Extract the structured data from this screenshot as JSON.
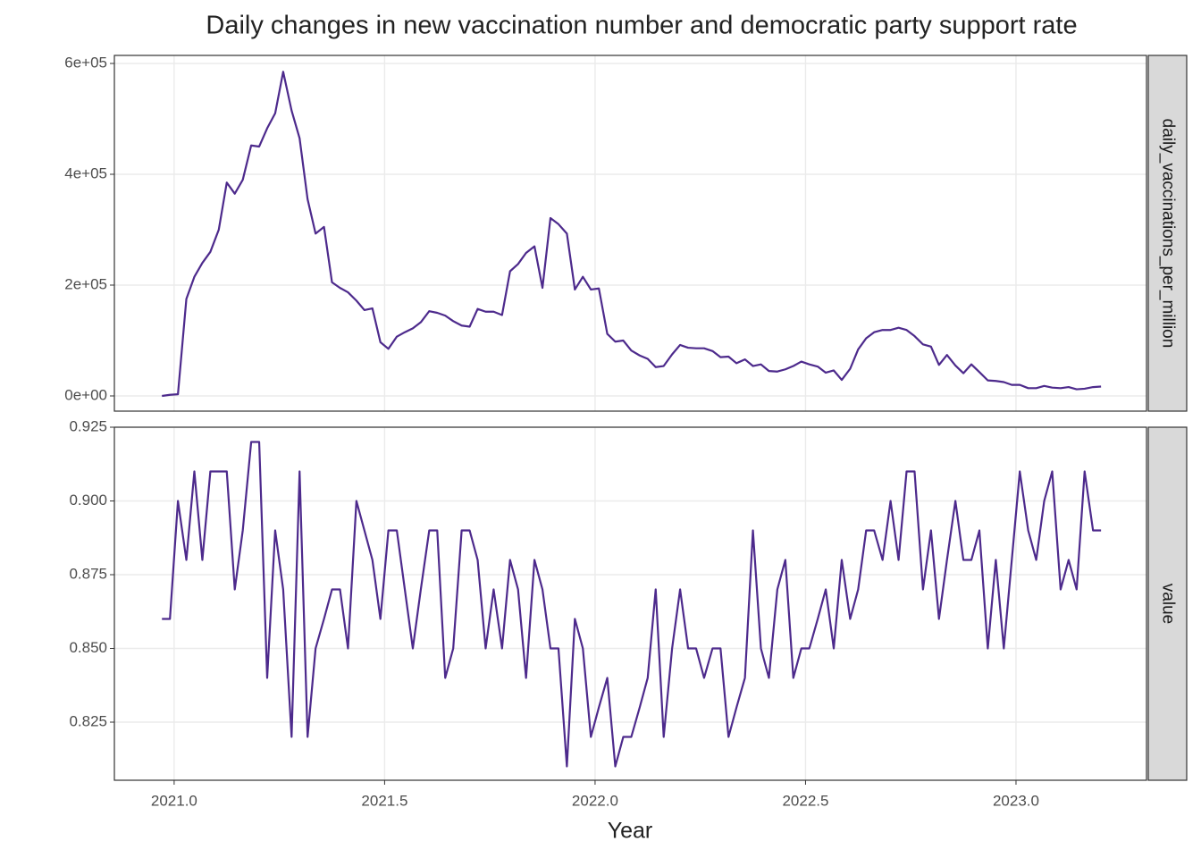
{
  "title": "Daily changes in new vaccination number and democratic party support rate",
  "x_label": "Year",
  "chart_data": [
    {
      "type": "line",
      "strip": "daily_vaccinations_per_million",
      "grid": true,
      "x": [
        2020.971,
        2020.99,
        2021.009,
        2021.029,
        2021.048,
        2021.067,
        2021.086,
        2021.106,
        2021.125,
        2021.144,
        2021.163,
        2021.183,
        2021.202,
        2021.221,
        2021.24,
        2021.259,
        2021.279,
        2021.298,
        2021.317,
        2021.336,
        2021.356,
        2021.375,
        2021.394,
        2021.413,
        2021.433,
        2021.452,
        2021.471,
        2021.49,
        2021.509,
        2021.529,
        2021.548,
        2021.567,
        2021.586,
        2021.606,
        2021.625,
        2021.644,
        2021.663,
        2021.683,
        2021.702,
        2021.721,
        2021.74,
        2021.759,
        2021.779,
        2021.798,
        2021.817,
        2021.836,
        2021.856,
        2021.875,
        2021.894,
        2021.913,
        2021.933,
        2021.952,
        2021.971,
        2021.99,
        2022.009,
        2022.029,
        2022.048,
        2022.067,
        2022.086,
        2022.106,
        2022.125,
        2022.144,
        2022.163,
        2022.183,
        2022.202,
        2022.221,
        2022.24,
        2022.259,
        2022.279,
        2022.298,
        2022.317,
        2022.336,
        2022.356,
        2022.375,
        2022.394,
        2022.413,
        2022.433,
        2022.452,
        2022.471,
        2022.49,
        2022.509,
        2022.529,
        2022.548,
        2022.567,
        2022.586,
        2022.606,
        2022.625,
        2022.644,
        2022.663,
        2022.683,
        2022.702,
        2022.721,
        2022.74,
        2022.759,
        2022.779,
        2022.798,
        2022.817,
        2022.836,
        2022.856,
        2022.875,
        2022.894,
        2022.913,
        2022.933,
        2022.952,
        2022.971,
        2022.99,
        2023.009,
        2023.029,
        2023.048,
        2023.067,
        2023.086,
        2023.106,
        2023.125,
        2023.144,
        2023.163,
        2023.183,
        2023.202
      ],
      "series": [
        {
          "color": "#4d2a8c",
          "values": [
            0,
            2000,
            3000,
            175000,
            215000,
            240000,
            260000,
            300000,
            385000,
            365000,
            390000,
            452000,
            450000,
            483000,
            510000,
            585000,
            515000,
            465000,
            355000,
            293000,
            305000,
            205000,
            195000,
            187000,
            172000,
            155000,
            158000,
            97000,
            85000,
            107000,
            115000,
            122000,
            133000,
            153000,
            150000,
            145000,
            135000,
            127000,
            125000,
            157000,
            152000,
            152000,
            146000,
            225000,
            238000,
            258000,
            270000,
            195000,
            321000,
            310000,
            293000,
            192000,
            215000,
            192000,
            194000,
            112000,
            98000,
            100000,
            82000,
            73000,
            67000,
            52000,
            54000,
            75000,
            92000,
            87000,
            86000,
            86000,
            81000,
            70000,
            71000,
            59000,
            66000,
            54000,
            57000,
            45000,
            44000,
            48000,
            54000,
            62000,
            57000,
            53000,
            42000,
            46000,
            29000,
            49000,
            84000,
            104000,
            115000,
            119000,
            119000,
            123000,
            119000,
            108000,
            93000,
            89000,
            56000,
            74000,
            55000,
            41000,
            57000,
            43000,
            28000,
            27000,
            25000,
            20000,
            20000,
            14000,
            14000,
            18000,
            15000,
            14000,
            16000,
            12000,
            13000,
            16000,
            17000
          ]
        }
      ],
      "xlim": [
        2020.858,
        2023.31
      ],
      "xticks": [
        {
          "value": 2021,
          "label": "2021.0"
        },
        2021.5,
        {
          "value": 2022,
          "label": "2022.0"
        },
        2022.5,
        {
          "value": 2023,
          "label": "2023.0"
        }
      ],
      "ylim": [
        -27400,
        614500
      ],
      "yticks": [
        {
          "value": 0,
          "label": "0e+00"
        },
        {
          "value": 200000,
          "label": "2e+05"
        },
        {
          "value": 400000,
          "label": "4e+05"
        },
        {
          "value": 600000,
          "label": "6e+05"
        }
      ]
    },
    {
      "type": "line",
      "strip": "value",
      "grid": true,
      "x": [
        2020.971,
        2020.99,
        2021.009,
        2021.029,
        2021.048,
        2021.067,
        2021.086,
        2021.106,
        2021.125,
        2021.144,
        2021.163,
        2021.183,
        2021.202,
        2021.221,
        2021.24,
        2021.259,
        2021.279,
        2021.298,
        2021.317,
        2021.336,
        2021.356,
        2021.375,
        2021.394,
        2021.413,
        2021.433,
        2021.452,
        2021.471,
        2021.49,
        2021.509,
        2021.529,
        2021.548,
        2021.567,
        2021.586,
        2021.606,
        2021.625,
        2021.644,
        2021.663,
        2021.683,
        2021.702,
        2021.721,
        2021.74,
        2021.759,
        2021.779,
        2021.798,
        2021.817,
        2021.836,
        2021.856,
        2021.875,
        2021.894,
        2021.913,
        2021.933,
        2021.952,
        2021.971,
        2021.99,
        2022.009,
        2022.029,
        2022.048,
        2022.067,
        2022.086,
        2022.106,
        2022.125,
        2022.144,
        2022.163,
        2022.183,
        2022.202,
        2022.221,
        2022.24,
        2022.259,
        2022.279,
        2022.298,
        2022.317,
        2022.336,
        2022.356,
        2022.375,
        2022.394,
        2022.413,
        2022.433,
        2022.452,
        2022.471,
        2022.49,
        2022.509,
        2022.529,
        2022.548,
        2022.567,
        2022.586,
        2022.606,
        2022.625,
        2022.644,
        2022.663,
        2022.683,
        2022.702,
        2022.721,
        2022.74,
        2022.759,
        2022.779,
        2022.798,
        2022.817,
        2022.836,
        2022.856,
        2022.875,
        2022.894,
        2022.913,
        2022.933,
        2022.952,
        2022.971,
        2022.99,
        2023.009,
        2023.029,
        2023.048,
        2023.067,
        2023.086,
        2023.106,
        2023.125,
        2023.144,
        2023.163,
        2023.183,
        2023.202
      ],
      "series": [
        {
          "color": "#4d2a8c",
          "values": [
            0.86,
            0.86,
            0.9,
            0.88,
            0.91,
            0.88,
            0.91,
            0.91,
            0.91,
            0.87,
            0.89,
            0.92,
            0.92,
            0.84,
            0.89,
            0.87,
            0.82,
            0.91,
            0.82,
            0.85,
            0.86,
            0.87,
            0.87,
            0.85,
            0.9,
            0.89,
            0.88,
            0.86,
            0.89,
            0.89,
            0.87,
            0.85,
            0.87,
            0.89,
            0.89,
            0.84,
            0.85,
            0.89,
            0.89,
            0.88,
            0.85,
            0.87,
            0.85,
            0.88,
            0.87,
            0.84,
            0.88,
            0.87,
            0.85,
            0.85,
            0.81,
            0.86,
            0.85,
            0.82,
            0.83,
            0.84,
            0.81,
            0.82,
            0.82,
            0.83,
            0.84,
            0.87,
            0.82,
            0.85,
            0.87,
            0.85,
            0.85,
            0.84,
            0.85,
            0.85,
            0.82,
            0.83,
            0.84,
            0.89,
            0.85,
            0.84,
            0.87,
            0.88,
            0.84,
            0.85,
            0.85,
            0.86,
            0.87,
            0.85,
            0.88,
            0.86,
            0.87,
            0.89,
            0.89,
            0.88,
            0.9,
            0.88,
            0.91,
            0.91,
            0.87,
            0.89,
            0.86,
            0.88,
            0.9,
            0.88,
            0.88,
            0.89,
            0.85,
            0.88,
            0.85,
            0.88,
            0.91,
            0.89,
            0.88,
            0.9,
            0.91,
            0.87,
            0.88,
            0.87,
            0.91,
            0.89,
            0.89
          ]
        }
      ],
      "xlim": [
        2020.858,
        2023.31
      ],
      "xticks": [
        {
          "value": 2021,
          "label": "2021.0"
        },
        2021.5,
        {
          "value": 2022,
          "label": "2022.0"
        },
        2022.5,
        {
          "value": 2023,
          "label": "2023.0"
        }
      ],
      "ylim": [
        0.8053,
        0.925
      ],
      "yticks": [
        0.825,
        {
          "value": 0.85,
          "label": "0.850"
        },
        {
          "value": 0.875,
          "label": "0.875"
        },
        {
          "value": 0.9,
          "label": "0.900"
        },
        0.925
      ]
    }
  ]
}
